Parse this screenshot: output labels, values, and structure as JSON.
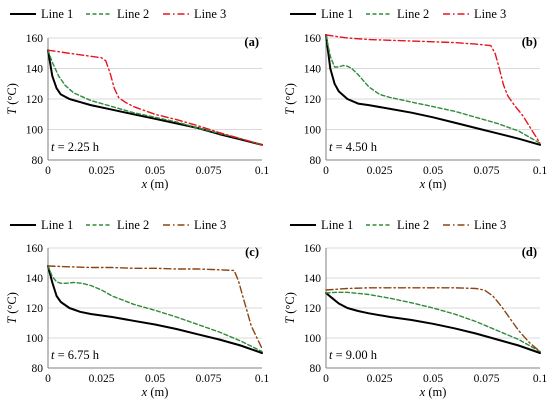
{
  "chart_data": [
    {
      "type": "line",
      "panel_label": "(a)",
      "time_label": "t = 2.25 h",
      "time_var": "t",
      "time_value": " = 2.25 h",
      "xlabel_var": "x",
      "xlabel_unit": " (m)",
      "ylabel_var": "T",
      "ylabel_unit": " (°C)",
      "xlim": [
        0,
        0.1
      ],
      "ylim": [
        80,
        160
      ],
      "xticks": [
        0,
        0.025,
        0.05,
        0.075,
        0.1
      ],
      "xtick_labels": [
        "0",
        "0.025",
        "0.05",
        "0.075",
        "0.1"
      ],
      "yticks": [
        80,
        100,
        120,
        140,
        160
      ],
      "ytick_labels": [
        "80",
        "100",
        "120",
        "140",
        "160"
      ],
      "legend_position": "top",
      "series": [
        {
          "name": "Line 1",
          "x": [
            0,
            0.002,
            0.004,
            0.006,
            0.01,
            0.015,
            0.02,
            0.03,
            0.04,
            0.05,
            0.06,
            0.07,
            0.08,
            0.09,
            0.1
          ],
          "y": [
            152,
            135,
            127,
            123,
            120,
            118,
            116,
            113,
            110,
            107,
            104,
            101,
            97,
            93.5,
            90
          ]
        },
        {
          "name": "Line 2",
          "x": [
            0,
            0.002,
            0.005,
            0.008,
            0.012,
            0.02,
            0.03,
            0.04,
            0.05,
            0.06,
            0.07,
            0.08,
            0.09,
            0.1
          ],
          "y": [
            152,
            144,
            135,
            129,
            124,
            119,
            115,
            111,
            108,
            105,
            101,
            97.5,
            94,
            90
          ]
        },
        {
          "name": "Line 3",
          "x": [
            0,
            0.005,
            0.01,
            0.02,
            0.025,
            0.027,
            0.029,
            0.031,
            0.033,
            0.036,
            0.04,
            0.05,
            0.06,
            0.07,
            0.08,
            0.09,
            0.1
          ],
          "y": [
            152,
            151,
            150,
            148,
            147,
            145,
            137,
            127,
            121,
            118,
            115,
            110,
            106.5,
            102.5,
            98,
            94,
            90
          ]
        }
      ]
    },
    {
      "type": "line",
      "panel_label": "(b)",
      "time_label": "t = 4.50 h",
      "time_var": "t",
      "time_value": " = 4.50 h",
      "xlabel_var": "x",
      "xlabel_unit": " (m)",
      "ylabel_var": "T",
      "ylabel_unit": " (°C)",
      "xlim": [
        0,
        0.1
      ],
      "ylim": [
        80,
        160
      ],
      "xticks": [
        0,
        0.025,
        0.05,
        0.075,
        0.1
      ],
      "xtick_labels": [
        "0",
        "0.025",
        "0.05",
        "0.075",
        "0.1"
      ],
      "yticks": [
        80,
        100,
        120,
        140,
        160
      ],
      "ytick_labels": [
        "80",
        "100",
        "120",
        "140",
        "160"
      ],
      "legend_position": "top",
      "series": [
        {
          "name": "Line 1",
          "x": [
            0,
            0.002,
            0.004,
            0.006,
            0.01,
            0.015,
            0.02,
            0.03,
            0.04,
            0.05,
            0.06,
            0.07,
            0.08,
            0.09,
            0.1
          ],
          "y": [
            162,
            140,
            130,
            125,
            120,
            117,
            116,
            113.5,
            111,
            108,
            104.5,
            101,
            97.5,
            94,
            90
          ]
        },
        {
          "name": "Line 2",
          "x": [
            0,
            0.002,
            0.004,
            0.006,
            0.008,
            0.01,
            0.012,
            0.015,
            0.02,
            0.025,
            0.03,
            0.04,
            0.05,
            0.06,
            0.07,
            0.08,
            0.09,
            0.1
          ],
          "y": [
            162,
            148,
            141,
            141,
            142,
            141.5,
            140,
            136,
            128,
            123,
            121,
            118,
            115,
            112,
            108,
            104,
            99,
            91
          ]
        },
        {
          "name": "Line 3",
          "x": [
            0,
            0.01,
            0.02,
            0.03,
            0.04,
            0.05,
            0.06,
            0.07,
            0.077,
            0.079,
            0.081,
            0.083,
            0.085,
            0.088,
            0.092,
            0.096,
            0.1
          ],
          "y": [
            162,
            160,
            159,
            158.5,
            158,
            157.5,
            157,
            156,
            155,
            150,
            140,
            129,
            122,
            116,
            109,
            100,
            91
          ]
        }
      ]
    },
    {
      "type": "line",
      "panel_label": "(c)",
      "time_label": "t = 6.75 h",
      "time_var": "t",
      "time_value": " = 6.75 h",
      "xlabel_var": "x",
      "xlabel_unit": " (m)",
      "ylabel_var": "T",
      "ylabel_unit": " (°C)",
      "xlim": [
        0,
        0.1
      ],
      "ylim": [
        80,
        160
      ],
      "xticks": [
        0,
        0.025,
        0.05,
        0.075,
        0.1
      ],
      "xtick_labels": [
        "0",
        "0.025",
        "0.05",
        "0.075",
        "0.1"
      ],
      "yticks": [
        80,
        100,
        120,
        140,
        160
      ],
      "ytick_labels": [
        "80",
        "100",
        "120",
        "140",
        "160"
      ],
      "legend_position": "top",
      "series": [
        {
          "name": "Line 1",
          "x": [
            0,
            0.002,
            0.004,
            0.006,
            0.01,
            0.015,
            0.02,
            0.03,
            0.04,
            0.05,
            0.06,
            0.07,
            0.08,
            0.09,
            0.1
          ],
          "y": [
            148,
            137,
            128,
            124,
            120,
            117.5,
            116,
            114,
            111.5,
            109,
            106,
            102.5,
            99,
            95,
            90
          ]
        },
        {
          "name": "Line 2",
          "x": [
            0,
            0.002,
            0.004,
            0.006,
            0.008,
            0.012,
            0.016,
            0.02,
            0.025,
            0.03,
            0.04,
            0.05,
            0.06,
            0.07,
            0.08,
            0.09,
            0.1
          ],
          "y": [
            148,
            141,
            137.5,
            136.5,
            136.5,
            137,
            136.5,
            135,
            132,
            128,
            122.5,
            118.5,
            114,
            109,
            104,
            98,
            91
          ]
        },
        {
          "name": "Line 3",
          "x": [
            0,
            0.01,
            0.02,
            0.03,
            0.04,
            0.05,
            0.06,
            0.07,
            0.08,
            0.087,
            0.089,
            0.091,
            0.093,
            0.095,
            0.098,
            0.1
          ],
          "y": [
            148,
            147.5,
            147,
            147,
            146.5,
            146.5,
            146,
            146,
            145.5,
            145,
            138,
            128,
            118,
            108,
            99,
            93
          ]
        }
      ]
    },
    {
      "type": "line",
      "panel_label": "(d)",
      "time_label": "t = 9.00 h",
      "time_var": "t",
      "time_value": " = 9.00 h",
      "xlabel_var": "x",
      "xlabel_unit": " (m)",
      "ylabel_var": "T",
      "ylabel_unit": " (°C)",
      "xlim": [
        0,
        0.1
      ],
      "ylim": [
        80,
        160
      ],
      "xticks": [
        0,
        0.025,
        0.05,
        0.075,
        0.1
      ],
      "xtick_labels": [
        "0",
        "0.025",
        "0.05",
        "0.075",
        "0.1"
      ],
      "yticks": [
        80,
        100,
        120,
        140,
        160
      ],
      "ytick_labels": [
        "80",
        "100",
        "120",
        "140",
        "160"
      ],
      "legend_position": "top",
      "series": [
        {
          "name": "Line 1",
          "x": [
            0,
            0.003,
            0.006,
            0.01,
            0.015,
            0.02,
            0.03,
            0.04,
            0.05,
            0.06,
            0.07,
            0.08,
            0.09,
            0.1
          ],
          "y": [
            130,
            126.5,
            123,
            120,
            118,
            116.5,
            114,
            112,
            109.5,
            106.5,
            103,
            99,
            95,
            90
          ]
        },
        {
          "name": "Line 2",
          "x": [
            0,
            0.005,
            0.01,
            0.02,
            0.03,
            0.04,
            0.05,
            0.06,
            0.07,
            0.08,
            0.09,
            0.1
          ],
          "y": [
            130,
            130.5,
            130.5,
            129,
            126.5,
            123.5,
            120,
            116,
            111,
            105,
            99,
            91
          ]
        },
        {
          "name": "Line 3",
          "x": [
            0,
            0.01,
            0.02,
            0.03,
            0.04,
            0.05,
            0.06,
            0.07,
            0.074,
            0.078,
            0.082,
            0.086,
            0.09,
            0.095,
            0.1
          ],
          "y": [
            132,
            133,
            133.5,
            133.5,
            133.5,
            133.5,
            133.5,
            133,
            132,
            128,
            121,
            113,
            105,
            97,
            91
          ]
        }
      ]
    }
  ],
  "colors": {
    "line1": "#000000",
    "line2": "#2e8b3a",
    "line3_ab": "#e8141b",
    "line3_cd": "#8b4513",
    "grid": "#d9d9d9",
    "axis": "#808080"
  }
}
